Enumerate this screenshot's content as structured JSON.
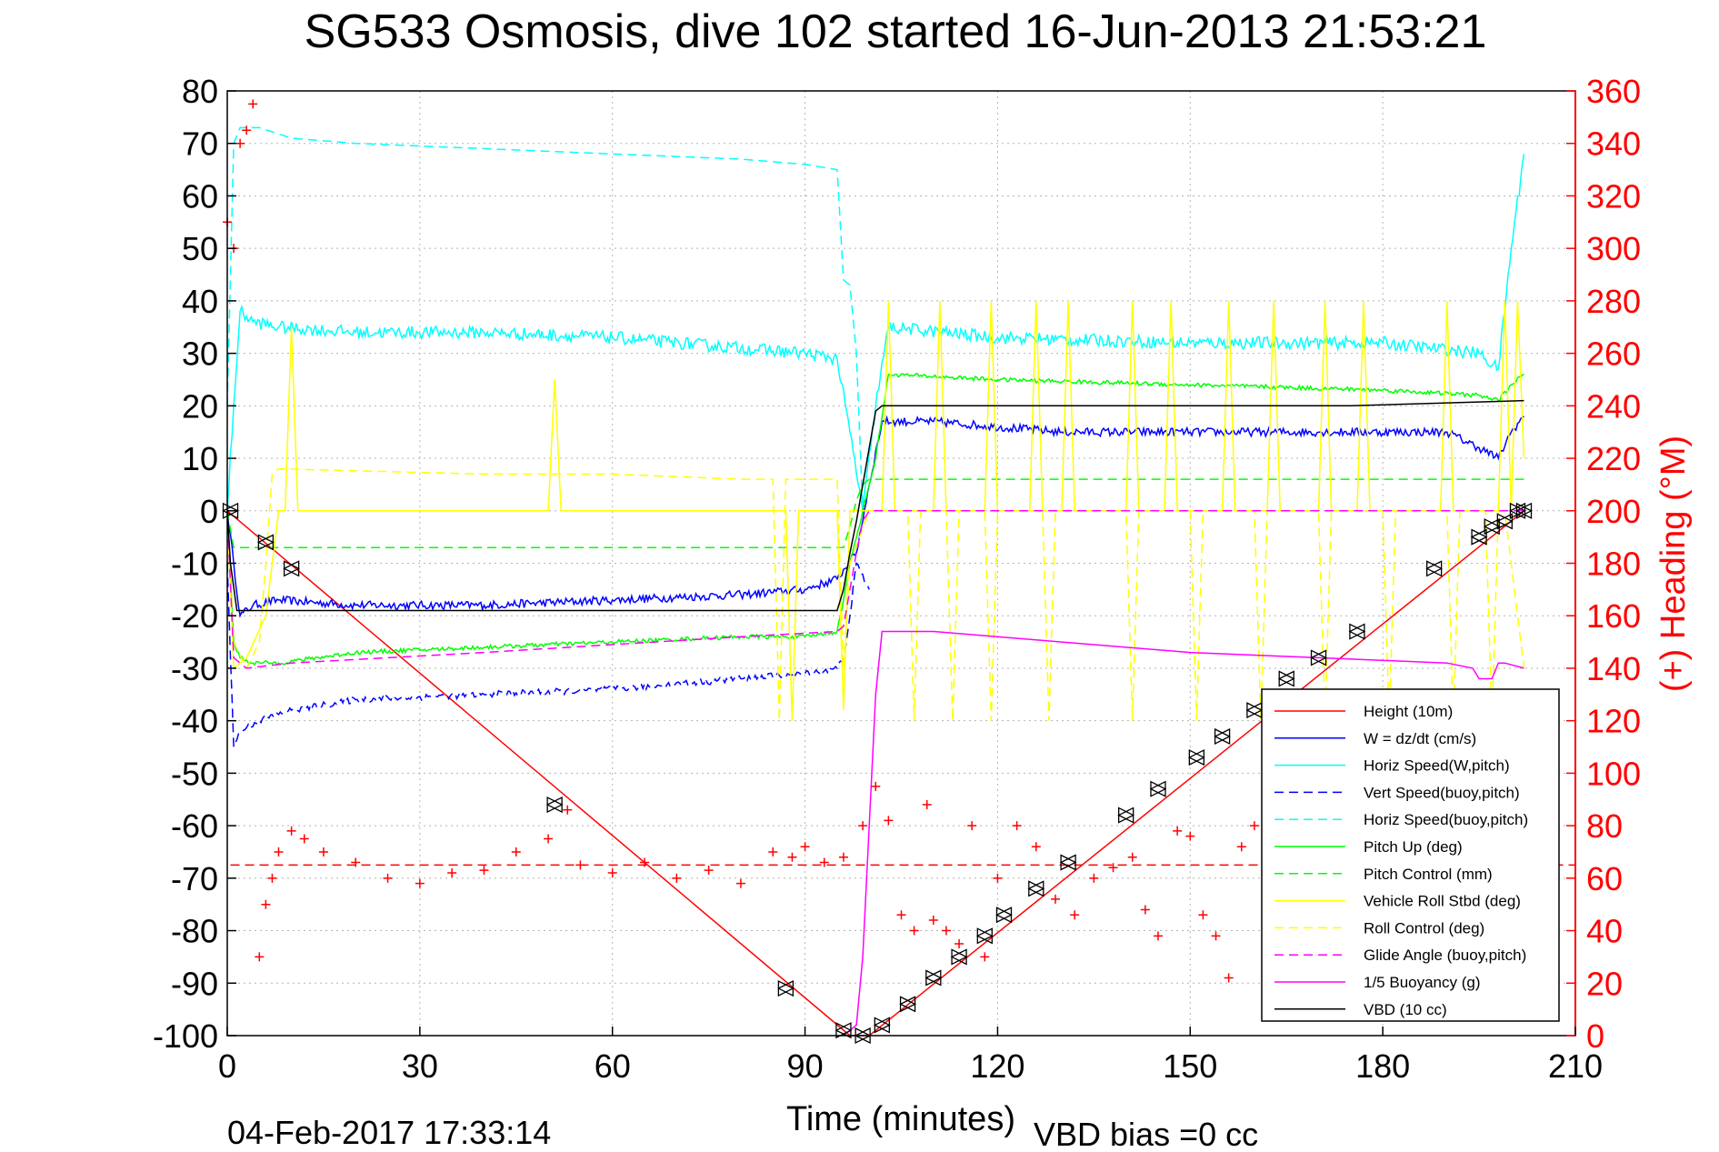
{
  "chart_data": {
    "type": "line",
    "title": "SG533 Osmosis, dive 102 started 16-Jun-2013 21:53:21",
    "xlabel": "Time (minutes)",
    "ylabel_right": "(+) Heading (°M)",
    "footer_left": "04-Feb-2017 17:33:14",
    "footer_right": "VBD bias =0 cc",
    "xlim": [
      0,
      210
    ],
    "ylim": [
      -100,
      80
    ],
    "ylim_right": [
      0,
      360
    ],
    "xticks": [
      "0",
      "30",
      "60",
      "90",
      "120",
      "150",
      "180",
      "210"
    ],
    "yticks": [
      "80",
      "70",
      "60",
      "50",
      "40",
      "30",
      "20",
      "10",
      "0",
      "-10",
      "-20",
      "-30",
      "-40",
      "-50",
      "-60",
      "-70",
      "-80",
      "-90",
      "-100"
    ],
    "yticks_right": [
      "360",
      "340",
      "320",
      "300",
      "280",
      "260",
      "240",
      "220",
      "200",
      "180",
      "160",
      "140",
      "120",
      "100",
      "80",
      "60",
      "40",
      "20",
      "0"
    ],
    "grid": true,
    "legend_position": "lower-right",
    "colors": {
      "axes": "#000000",
      "grid": "#b4b4b4",
      "right_axis": "#ff0000"
    },
    "legend": [
      {
        "label": "Height (10m)",
        "color": "#ff0000",
        "dash": "solid"
      },
      {
        "label": "W = dz/dt (cm/s)",
        "color": "#0000ff",
        "dash": "solid"
      },
      {
        "label": "Horiz Speed(W,pitch)",
        "color": "#00ffff",
        "dash": "solid"
      },
      {
        "label": "Vert Speed(buoy,pitch)",
        "color": "#0000ff",
        "dash": "dashed"
      },
      {
        "label": "Horiz Speed(buoy,pitch)",
        "color": "#00ffff",
        "dash": "dashed"
      },
      {
        "label": "Pitch Up (deg)",
        "color": "#00ff00",
        "dash": "solid"
      },
      {
        "label": "Pitch Control (mm)",
        "color": "#00ff00",
        "dash": "dashed"
      },
      {
        "label": "Vehicle Roll Stbd (deg)",
        "color": "#ffff00",
        "dash": "solid"
      },
      {
        "label": "Roll Control (deg)",
        "color": "#ffff00",
        "dash": "dashed"
      },
      {
        "label": "Glide Angle (buoy,pitch)",
        "color": "#ff00ff",
        "dash": "dashed"
      },
      {
        "label": "1/5 Buoyancy (g)",
        "color": "#ff00ff",
        "dash": "solid"
      },
      {
        "label": "VBD (10 cc)",
        "color": "#000000",
        "dash": "solid"
      }
    ],
    "series": [
      {
        "name": "Height (10m)",
        "color": "#ff0000",
        "dash": "solid",
        "x": [
          0,
          97,
          100,
          202
        ],
        "y": [
          0,
          -100,
          -100,
          0
        ]
      },
      {
        "name": "W = dz/dt (cm/s)",
        "color": "#0000ff",
        "dash": "solid",
        "noise": 0.8,
        "x": [
          0,
          1,
          2,
          4,
          8,
          20,
          40,
          60,
          80,
          90,
          95,
          98,
          100,
          102,
          110,
          130,
          150,
          170,
          190,
          195,
          198,
          200,
          202
        ],
        "y": [
          0,
          -10,
          -20,
          -18,
          -17,
          -18,
          -18,
          -17,
          -16,
          -15,
          -13,
          -8,
          5,
          17,
          17,
          15,
          15,
          15,
          15,
          12,
          10,
          15,
          18
        ]
      },
      {
        "name": "Horiz Speed(W,pitch)",
        "color": "#00ffff",
        "dash": "solid",
        "noise": 1.2,
        "x": [
          0,
          1,
          2,
          4,
          8,
          20,
          40,
          60,
          80,
          90,
          95,
          97,
          99,
          101,
          103,
          120,
          150,
          180,
          195,
          198,
          200,
          202
        ],
        "y": [
          0,
          20,
          38,
          36,
          35,
          34,
          34,
          33,
          31,
          30,
          29,
          15,
          0,
          20,
          35,
          33,
          32,
          32,
          30,
          27,
          50,
          68
        ]
      },
      {
        "name": "Vert Speed(buoy,pitch)",
        "color": "#0000ff",
        "dash": "dashed",
        "noise": 0.6,
        "x": [
          0,
          1,
          2,
          5,
          10,
          20,
          40,
          60,
          80,
          90,
          95,
          96,
          97,
          98,
          100
        ],
        "y": [
          -10,
          -45,
          -42,
          -40,
          -38,
          -36,
          -35,
          -34,
          -32,
          -31,
          -30,
          -28,
          -20,
          -10,
          -15
        ]
      },
      {
        "name": "Horiz Speed(buoy,pitch)",
        "color": "#00ffff",
        "dash": "dashed",
        "x": [
          0,
          1,
          2,
          5,
          10,
          20,
          40,
          60,
          80,
          90,
          95,
          96,
          97,
          98,
          99
        ],
        "y": [
          20,
          70,
          73,
          73,
          71,
          70,
          69,
          68,
          67,
          66,
          65,
          44,
          43,
          30,
          0
        ]
      },
      {
        "name": "Pitch Up (deg)",
        "color": "#00ff00",
        "dash": "solid",
        "noise": 0.4,
        "x": [
          0,
          1,
          2,
          4,
          8,
          20,
          40,
          60,
          80,
          90,
          95,
          96,
          97,
          99,
          101,
          103,
          120,
          150,
          180,
          195,
          198,
          200,
          202
        ],
        "y": [
          0,
          -25,
          -28,
          -29,
          -29,
          -27,
          -26,
          -25,
          -24,
          -24,
          -23,
          -17,
          -10,
          0,
          10,
          26,
          25,
          24,
          23,
          22,
          21,
          24,
          26
        ]
      },
      {
        "name": "Pitch Control (mm)",
        "color": "#00ff00",
        "dash": "dashed",
        "x": [
          0,
          1,
          3,
          96,
          97,
          98,
          99,
          100,
          102,
          202
        ],
        "y": [
          0,
          -7,
          -7,
          -7,
          -3,
          2,
          5,
          6,
          6,
          6
        ]
      },
      {
        "name": "Vehicle Roll Stbd (deg)",
        "color": "#ffff00",
        "dash": "solid",
        "x": [
          0,
          1,
          3,
          6,
          8,
          9,
          10,
          11,
          12,
          50,
          51,
          52,
          53,
          87,
          88,
          89,
          90,
          95,
          96,
          97,
          98,
          102,
          103,
          104,
          105,
          110,
          111,
          112,
          113,
          118,
          119,
          120,
          121,
          125,
          126,
          127,
          128,
          130,
          131,
          132,
          133,
          140,
          141,
          142,
          143,
          146,
          147,
          148,
          149,
          155,
          156,
          157,
          158,
          162,
          163,
          164,
          165,
          170,
          171,
          172,
          173,
          176,
          177,
          178,
          179,
          189,
          190,
          191,
          192,
          198,
          199,
          200,
          201,
          202
        ],
        "y": [
          0,
          -30,
          -28,
          -20,
          0,
          0,
          35,
          0,
          0,
          0,
          25,
          0,
          0,
          0,
          -40,
          0,
          0,
          0,
          -38,
          0,
          0,
          0,
          40,
          0,
          0,
          0,
          40,
          0,
          0,
          0,
          40,
          0,
          0,
          0,
          40,
          0,
          0,
          0,
          40,
          0,
          0,
          0,
          40,
          0,
          0,
          0,
          40,
          0,
          0,
          0,
          40,
          0,
          0,
          0,
          40,
          0,
          0,
          0,
          40,
          0,
          0,
          0,
          40,
          0,
          0,
          0,
          40,
          0,
          0,
          0,
          40,
          0,
          40,
          10
        ]
      },
      {
        "name": "Roll Control (deg)",
        "color": "#ffff00",
        "dash": "dashed",
        "x": [
          0,
          1,
          3,
          5,
          6,
          7,
          8,
          40,
          60,
          80,
          85,
          86,
          87,
          88,
          95,
          96,
          97,
          100,
          102,
          106,
          107,
          108,
          109,
          112,
          113,
          114,
          115,
          118,
          119,
          120,
          121,
          127,
          128,
          129,
          130,
          140,
          141,
          142,
          143,
          150,
          151,
          152,
          153,
          160,
          161,
          162,
          163,
          170,
          171,
          172,
          173,
          180,
          181,
          182,
          183,
          190,
          191,
          192,
          193,
          196,
          197,
          198,
          199,
          202
        ],
        "y": [
          0,
          -25,
          -30,
          -25,
          -10,
          7,
          8,
          7,
          7,
          6,
          6,
          -40,
          6,
          6,
          6,
          -30,
          -10,
          0,
          0,
          0,
          -40,
          0,
          0,
          0,
          -40,
          0,
          0,
          0,
          -40,
          0,
          0,
          0,
          -40,
          0,
          0,
          0,
          -40,
          0,
          0,
          0,
          -40,
          0,
          0,
          0,
          -40,
          0,
          0,
          0,
          -40,
          0,
          0,
          0,
          -40,
          0,
          0,
          0,
          -40,
          0,
          0,
          0,
          -40,
          0,
          0,
          -30
        ]
      },
      {
        "name": "Glide Angle (buoy,pitch)",
        "color": "#ff00ff",
        "dash": "dashed",
        "x": [
          0,
          1,
          3,
          10,
          40,
          80,
          95,
          96,
          97,
          98,
          99,
          100,
          202
        ],
        "y": [
          0,
          -28,
          -30,
          -29,
          -27,
          -24,
          -23,
          -22,
          -15,
          -8,
          -2,
          0,
          0
        ]
      },
      {
        "name": "1/5 Buoyancy (g)",
        "color": "#ff00ff",
        "dash": "solid",
        "x": [
          96,
          97,
          98,
          99,
          101,
          102,
          110,
          130,
          150,
          170,
          190,
          194,
          195,
          197,
          198,
          199,
          202
        ],
        "y": [
          -100,
          -99,
          -98,
          -85,
          -35,
          -23,
          -23,
          -25,
          -27,
          -28,
          -29,
          -30,
          -32,
          -32,
          -29,
          -29,
          -30
        ]
      },
      {
        "name": "VBD (10 cc)",
        "color": "#000000",
        "dash": "solid",
        "x": [
          0,
          0.5,
          1.5,
          2.5,
          95,
          96,
          97,
          98,
          100,
          101,
          102,
          175,
          202
        ],
        "y": [
          0,
          -10,
          -19,
          -19,
          -19,
          -15,
          -8,
          -2,
          12,
          19,
          20,
          20,
          21
        ]
      }
    ],
    "heading_target": {
      "name": "Heading target",
      "color": "#ff0000",
      "dash": "dashed",
      "y_right": 65
    },
    "heading_points": [
      {
        "x": 0,
        "y": 310
      },
      {
        "x": 1,
        "y": 300
      },
      {
        "x": 2,
        "y": 340
      },
      {
        "x": 3,
        "y": 345
      },
      {
        "x": 4,
        "y": 355
      },
      {
        "x": 5,
        "y": 30
      },
      {
        "x": 6,
        "y": 50
      },
      {
        "x": 7,
        "y": 60
      },
      {
        "x": 8,
        "y": 70
      },
      {
        "x": 10,
        "y": 78
      },
      {
        "x": 12,
        "y": 75
      },
      {
        "x": 15,
        "y": 70
      },
      {
        "x": 20,
        "y": 66
      },
      {
        "x": 25,
        "y": 60
      },
      {
        "x": 30,
        "y": 58
      },
      {
        "x": 35,
        "y": 62
      },
      {
        "x": 40,
        "y": 63
      },
      {
        "x": 45,
        "y": 70
      },
      {
        "x": 50,
        "y": 75
      },
      {
        "x": 53,
        "y": 86
      },
      {
        "x": 55,
        "y": 65
      },
      {
        "x": 60,
        "y": 62
      },
      {
        "x": 65,
        "y": 66
      },
      {
        "x": 70,
        "y": 60
      },
      {
        "x": 75,
        "y": 63
      },
      {
        "x": 80,
        "y": 58
      },
      {
        "x": 85,
        "y": 70
      },
      {
        "x": 88,
        "y": 68
      },
      {
        "x": 90,
        "y": 72
      },
      {
        "x": 93,
        "y": 66
      },
      {
        "x": 96,
        "y": 68
      },
      {
        "x": 99,
        "y": 80
      },
      {
        "x": 101,
        "y": 95
      },
      {
        "x": 103,
        "y": 82
      },
      {
        "x": 105,
        "y": 46
      },
      {
        "x": 107,
        "y": 40
      },
      {
        "x": 109,
        "y": 88
      },
      {
        "x": 110,
        "y": 44
      },
      {
        "x": 112,
        "y": 40
      },
      {
        "x": 114,
        "y": 35
      },
      {
        "x": 116,
        "y": 80
      },
      {
        "x": 118,
        "y": 30
      },
      {
        "x": 120,
        "y": 60
      },
      {
        "x": 123,
        "y": 80
      },
      {
        "x": 126,
        "y": 72
      },
      {
        "x": 129,
        "y": 52
      },
      {
        "x": 132,
        "y": 46
      },
      {
        "x": 135,
        "y": 60
      },
      {
        "x": 138,
        "y": 64
      },
      {
        "x": 141,
        "y": 68
      },
      {
        "x": 143,
        "y": 48
      },
      {
        "x": 145,
        "y": 38
      },
      {
        "x": 148,
        "y": 78
      },
      {
        "x": 150,
        "y": 76
      },
      {
        "x": 152,
        "y": 46
      },
      {
        "x": 154,
        "y": 38
      },
      {
        "x": 156,
        "y": 22
      },
      {
        "x": 158,
        "y": 72
      },
      {
        "x": 160,
        "y": 80
      },
      {
        "x": 162,
        "y": 60
      },
      {
        "x": 165,
        "y": 48
      },
      {
        "x": 168,
        "y": 65
      },
      {
        "x": 170,
        "y": 62
      }
    ],
    "markers": [
      {
        "x": 0.5,
        "y": 0
      },
      {
        "x": 6,
        "y": -6
      },
      {
        "x": 10,
        "y": -11
      },
      {
        "x": 51,
        "y": -56
      },
      {
        "x": 87,
        "y": -91
      },
      {
        "x": 96,
        "y": -99
      },
      {
        "x": 99,
        "y": -100
      },
      {
        "x": 102,
        "y": -98
      },
      {
        "x": 106,
        "y": -94
      },
      {
        "x": 110,
        "y": -89
      },
      {
        "x": 114,
        "y": -85
      },
      {
        "x": 118,
        "y": -81
      },
      {
        "x": 121,
        "y": -77
      },
      {
        "x": 126,
        "y": -72
      },
      {
        "x": 131,
        "y": -67
      },
      {
        "x": 140,
        "y": -58
      },
      {
        "x": 145,
        "y": -53
      },
      {
        "x": 151,
        "y": -47
      },
      {
        "x": 155,
        "y": -43
      },
      {
        "x": 160,
        "y": -38
      },
      {
        "x": 165,
        "y": -32
      },
      {
        "x": 170,
        "y": -28
      },
      {
        "x": 176,
        "y": -23
      },
      {
        "x": 188,
        "y": -11
      },
      {
        "x": 195,
        "y": -5
      },
      {
        "x": 197,
        "y": -3
      },
      {
        "x": 199,
        "y": -2
      },
      {
        "x": 201,
        "y": 0
      },
      {
        "x": 202,
        "y": 0
      }
    ]
  }
}
